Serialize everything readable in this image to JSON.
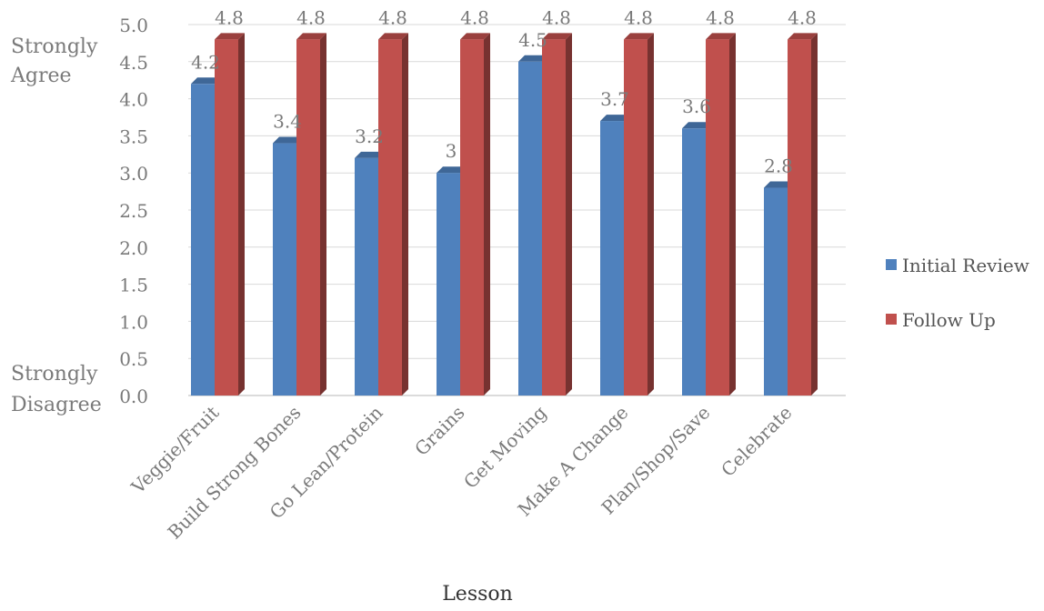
{
  "chart_data": {
    "type": "bar",
    "xlabel": "Lesson",
    "ylabel_top": [
      "Strongly",
      "Agree"
    ],
    "ylabel_bottom": [
      "Strongly",
      "Disagree"
    ],
    "ylim": [
      0,
      5
    ],
    "yticks": [
      "0.0",
      "0.5",
      "1.0",
      "1.5",
      "2.0",
      "2.5",
      "3.0",
      "3.5",
      "4.0",
      "4.5",
      "5.0"
    ],
    "grid": true,
    "legend_position": "right",
    "categories": [
      "Veggie/Fruit",
      "Build Strong Bones",
      "Go Lean/Protein",
      "Grains",
      "Get Moving",
      "Make A Change",
      "Plan/Shop/Save",
      "Celebrate"
    ],
    "series": [
      {
        "name": "Initial Review",
        "color": "#4f81bd",
        "values": [
          4.2,
          3.4,
          3.2,
          3,
          4.5,
          3.7,
          3.6,
          2.8
        ],
        "labels": [
          "4.2",
          "3.4",
          "3.2",
          "3",
          "4.5",
          "3.7",
          "3.6",
          "2.8"
        ]
      },
      {
        "name": "Follow Up",
        "color": "#c0504d",
        "values": [
          4.8,
          4.8,
          4.8,
          4.8,
          4.8,
          4.8,
          4.8,
          4.8
        ],
        "labels": [
          "4.8",
          "4.8",
          "4.8",
          "4.8",
          "4.8",
          "4.8",
          "4.8",
          "4.8"
        ]
      }
    ]
  }
}
